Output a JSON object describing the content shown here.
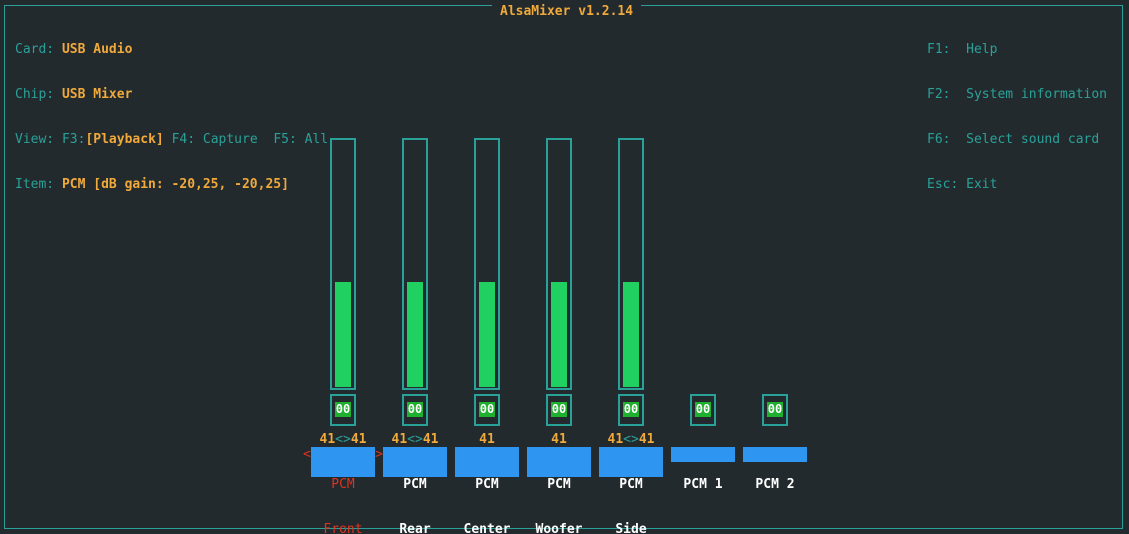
{
  "app": {
    "title": "AlsaMixer v1.2.14"
  },
  "info": {
    "card_label": "Card:",
    "card_value": "USB Audio",
    "chip_label": "Chip:",
    "chip_value": "USB Mixer",
    "view_label": "View:",
    "view_f3": "F3:",
    "view_playback": "[Playback]",
    "view_f4": "F4: Capture",
    "view_f5": "F5: All",
    "item_label": "Item:",
    "item_value": "PCM [dB gain: -20,25, -20,25]"
  },
  "help": {
    "f1": "F1:  Help",
    "f2": "F2:  System information",
    "f6": "F6:  Select sound card",
    "esc": "Esc: Exit"
  },
  "selection": {
    "left_mark": "<",
    "right_mark": ">"
  },
  "controls": [
    {
      "name_line1": "PCM",
      "name_line2": "Front",
      "level_left": "41",
      "level_arrow": "<>",
      "level_right": "41",
      "mute": "00",
      "volume_percent": 41,
      "selected": true
    },
    {
      "name_line1": "PCM",
      "name_line2": "Rear",
      "level_left": "41",
      "level_arrow": "<>",
      "level_right": "41",
      "mute": "00",
      "volume_percent": 41,
      "selected": false
    },
    {
      "name_line1": "PCM",
      "name_line2": "Center",
      "level_left": "41",
      "level_arrow": "",
      "level_right": "",
      "mute": "00",
      "volume_percent": 41,
      "selected": false
    },
    {
      "name_line1": "PCM",
      "name_line2": "Woofer",
      "level_left": "41",
      "level_arrow": "",
      "level_right": "",
      "mute": "00",
      "volume_percent": 41,
      "selected": false
    },
    {
      "name_line1": "PCM",
      "name_line2": "Side",
      "level_left": "41",
      "level_arrow": "<>",
      "level_right": "41",
      "mute": "00",
      "volume_percent": 41,
      "selected": false
    },
    {
      "name_line1": "PCM 1",
      "name_line2": "",
      "mute": "00"
    },
    {
      "name_line1": "PCM 2",
      "name_line2": "",
      "mute": "00"
    }
  ],
  "colors": {
    "background": "#222a2e",
    "border": "#2aa198",
    "accent": "#f0a93a",
    "bar_fill": "#20d060",
    "label_bg": "#2e95f0",
    "selected_text": "#e0331f"
  }
}
